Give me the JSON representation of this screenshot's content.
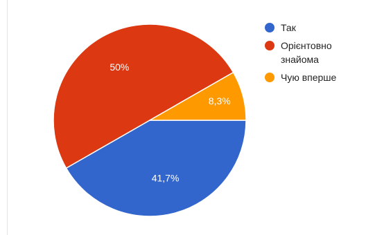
{
  "chart_data": {
    "type": "pie",
    "title": "",
    "slices": [
      {
        "label": "Так",
        "value": 41.7,
        "display": "41,7%",
        "color": "#3366cc"
      },
      {
        "label": "Орієнтовно знайома",
        "value": 50,
        "display": "50%",
        "color": "#dc3912"
      },
      {
        "label": "Чую вперше",
        "value": 8.3,
        "display": "8,3%",
        "color": "#ff9900"
      }
    ],
    "legend_position": "right",
    "start_direction": "east",
    "direction": "clockwise"
  }
}
